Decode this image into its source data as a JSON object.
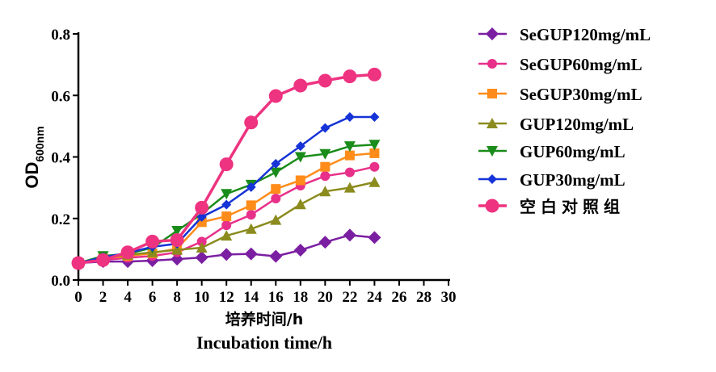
{
  "chart_data": {
    "type": "line",
    "title": "",
    "xlabel_cn": "培养时间/h",
    "xlabel_en": "Incubation time/h",
    "ylabel": "OD",
    "ylabel_sub": "600nm",
    "xlim": [
      0,
      30
    ],
    "ylim": [
      0,
      0.8
    ],
    "x_ticks": [
      "0",
      "2",
      "4",
      "6",
      "8",
      "10",
      "12",
      "14",
      "16",
      "18",
      "20",
      "22",
      "24",
      "26",
      "28",
      "30"
    ],
    "y_ticks": [
      "0.0",
      "0.2",
      "0.4",
      "0.6",
      "0.8"
    ],
    "x": [
      0,
      2,
      4,
      6,
      8,
      10,
      12,
      14,
      16,
      18,
      20,
      22,
      24
    ],
    "grid": false,
    "legend_position": "right",
    "series": [
      {
        "name": "SeGUP120mg/mL",
        "color": "#7b1fa2",
        "marker": "diamond",
        "values": [
          0.055,
          0.06,
          0.06,
          0.063,
          0.068,
          0.073,
          0.083,
          0.085,
          0.077,
          0.097,
          0.123,
          0.146,
          0.138
        ]
      },
      {
        "name": "SeGUP60mg/mL",
        "color": "#e8308a",
        "marker": "circle",
        "values": [
          0.055,
          0.065,
          0.072,
          0.078,
          0.09,
          0.125,
          0.178,
          0.212,
          0.265,
          0.307,
          0.338,
          0.35,
          0.368
        ]
      },
      {
        "name": "SeGUP30mg/mL",
        "color": "#ff8c1a",
        "marker": "square",
        "values": [
          0.055,
          0.07,
          0.078,
          0.087,
          0.102,
          0.188,
          0.207,
          0.243,
          0.296,
          0.324,
          0.368,
          0.405,
          0.412
        ]
      },
      {
        "name": "GUP120mg/mL",
        "color": "#8b8b1e",
        "marker": "triangle-up",
        "values": [
          0.055,
          0.072,
          0.082,
          0.09,
          0.098,
          0.105,
          0.144,
          0.166,
          0.195,
          0.246,
          0.288,
          0.3,
          0.318
        ]
      },
      {
        "name": "GUP60mg/mL",
        "color": "#1a8c1a",
        "marker": "triangle-down",
        "values": [
          0.055,
          0.078,
          0.085,
          0.105,
          0.16,
          0.215,
          0.28,
          0.31,
          0.35,
          0.4,
          0.41,
          0.435,
          0.44
        ]
      },
      {
        "name": "GUP30mg/mL",
        "color": "#1533d6",
        "marker": "diamond-small",
        "values": [
          0.055,
          0.074,
          0.088,
          0.108,
          0.118,
          0.205,
          0.245,
          0.302,
          0.378,
          0.435,
          0.494,
          0.53,
          0.53
        ]
      },
      {
        "name": "空白对照组",
        "color": "#ee3380",
        "marker": "circle-large",
        "values": [
          0.055,
          0.065,
          0.09,
          0.125,
          0.13,
          0.235,
          0.376,
          0.512,
          0.598,
          0.632,
          0.648,
          0.662,
          0.668
        ]
      }
    ]
  }
}
